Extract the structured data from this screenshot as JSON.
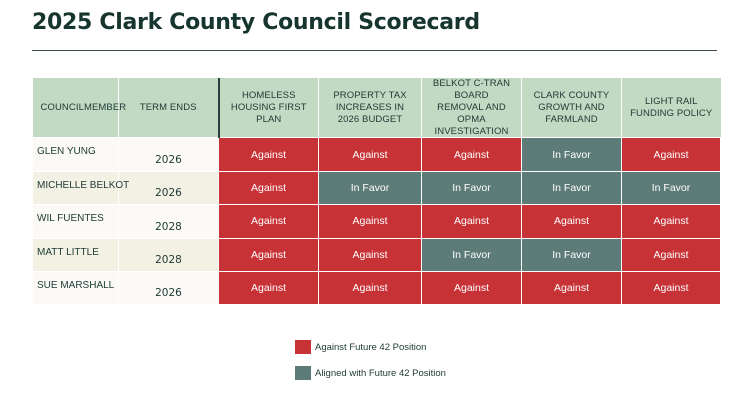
{
  "title": "2025 Clark County Council Scorecard",
  "colors": {
    "against": "#c73236",
    "in_favor": "#5d7c78",
    "header_bg": "#c2dac4",
    "title": "#16352f"
  },
  "table": {
    "headers": [
      "Councilmember",
      "Term Ends",
      "Homeless Housing First Plan",
      "Property Tax Increases in 2026 Budget",
      "Belkot C-Tran Board Removal and OPMA Investigation",
      "Clark County Growth and Farmland",
      "Light Rail Funding Policy"
    ],
    "rows": [
      {
        "member": "Glen Yung",
        "term": "2026",
        "votes": [
          "Against",
          "Against",
          "Against",
          "In Favor",
          "Against"
        ]
      },
      {
        "member": "Michelle Belkot",
        "term": "2026",
        "votes": [
          "Against",
          "In Favor",
          "In Favor",
          "In Favor",
          "In Favor"
        ]
      },
      {
        "member": "Wil Fuentes",
        "term": "2028",
        "votes": [
          "Against",
          "Against",
          "Against",
          "Against",
          "Against"
        ]
      },
      {
        "member": "Matt Little",
        "term": "2028",
        "votes": [
          "Against",
          "Against",
          "In Favor",
          "In Favor",
          "Against"
        ]
      },
      {
        "member": "Sue Marshall",
        "term": "2026",
        "votes": [
          "Against",
          "Against",
          "Against",
          "Against",
          "Against"
        ]
      }
    ]
  },
  "legend": [
    {
      "label": "Against Future 42 Position",
      "color": "#c73236"
    },
    {
      "label": "Aligned with Future 42 Position",
      "color": "#5d7c78"
    }
  ]
}
